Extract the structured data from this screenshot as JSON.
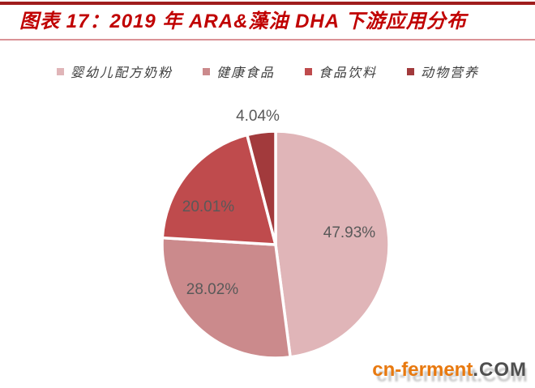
{
  "header": {
    "title": "图表 17：2019 年 ARA&藻油 DHA 下游应用分布"
  },
  "chart_data": {
    "type": "pie",
    "title": "2019 年 ARA&藻油 DHA 下游应用分布",
    "categories": [
      "婴幼儿配方奶粉",
      "健康食品",
      "食品饮料",
      "动物营养"
    ],
    "values": [
      47.93,
      28.02,
      20.01,
      4.04
    ],
    "labels": [
      "47.93%",
      "28.02%",
      "20.01%",
      "4.04%"
    ],
    "colors": [
      "#E0B5B8",
      "#CB8A8C",
      "#BF4B4D",
      "#A23A3C"
    ],
    "unit": "%",
    "start_angle_deg": 0,
    "direction": "clockwise",
    "legend_position": "top",
    "data_label_color": "#595959",
    "slice_border_color": "#FFFFFF"
  },
  "watermark": {
    "site": "cn-ferment",
    "tld": ".COM"
  },
  "theme": {
    "background": "#FFFFFF",
    "title_color": "#C00000",
    "top_rule_color": "#A01D1D",
    "divider_color": "#DA9296",
    "legend_text_color": "#3D3D3D",
    "watermark_site_color": "#E8790F",
    "watermark_tld_color": "#4F4F4F"
  }
}
